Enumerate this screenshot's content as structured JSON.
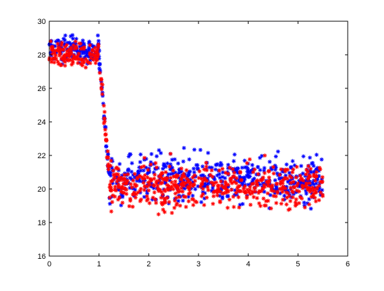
{
  "chart_data": {
    "type": "scatter",
    "title": "",
    "xlabel": "",
    "ylabel": "",
    "xlim": [
      0,
      6
    ],
    "ylim": [
      16,
      30
    ],
    "x_ticks": [
      "0",
      "1",
      "2",
      "3",
      "4",
      "5",
      "6"
    ],
    "y_ticks": [
      "16",
      "18",
      "20",
      "22",
      "24",
      "26",
      "28",
      "30"
    ],
    "grid": false,
    "marker": "asterisk",
    "x_range_of_data": [
      0,
      5.5
    ],
    "series": [
      {
        "color": "#0000ff",
        "segments": [
          {
            "x_from": 0.0,
            "x_to": 1.0,
            "y_center": 28.3,
            "y_spread": 0.8,
            "n": 130
          },
          {
            "x_from": 1.0,
            "x_to": 1.2,
            "y_from": 28.0,
            "y_to": 21.0,
            "y_spread": 0.6,
            "n": 30
          },
          {
            "x_from": 1.2,
            "x_to": 5.5,
            "y_center": 20.6,
            "y_spread": 1.5,
            "n": 520
          }
        ]
      },
      {
        "color": "#ff0000",
        "segments": [
          {
            "x_from": 0.0,
            "x_to": 1.0,
            "y_center": 28.0,
            "y_spread": 0.7,
            "n": 130
          },
          {
            "x_from": 1.0,
            "x_to": 1.2,
            "y_from": 28.0,
            "y_to": 21.0,
            "y_spread": 0.6,
            "n": 30
          },
          {
            "x_from": 1.2,
            "x_to": 5.5,
            "y_center": 20.2,
            "y_spread": 1.4,
            "n": 520
          }
        ]
      }
    ]
  }
}
